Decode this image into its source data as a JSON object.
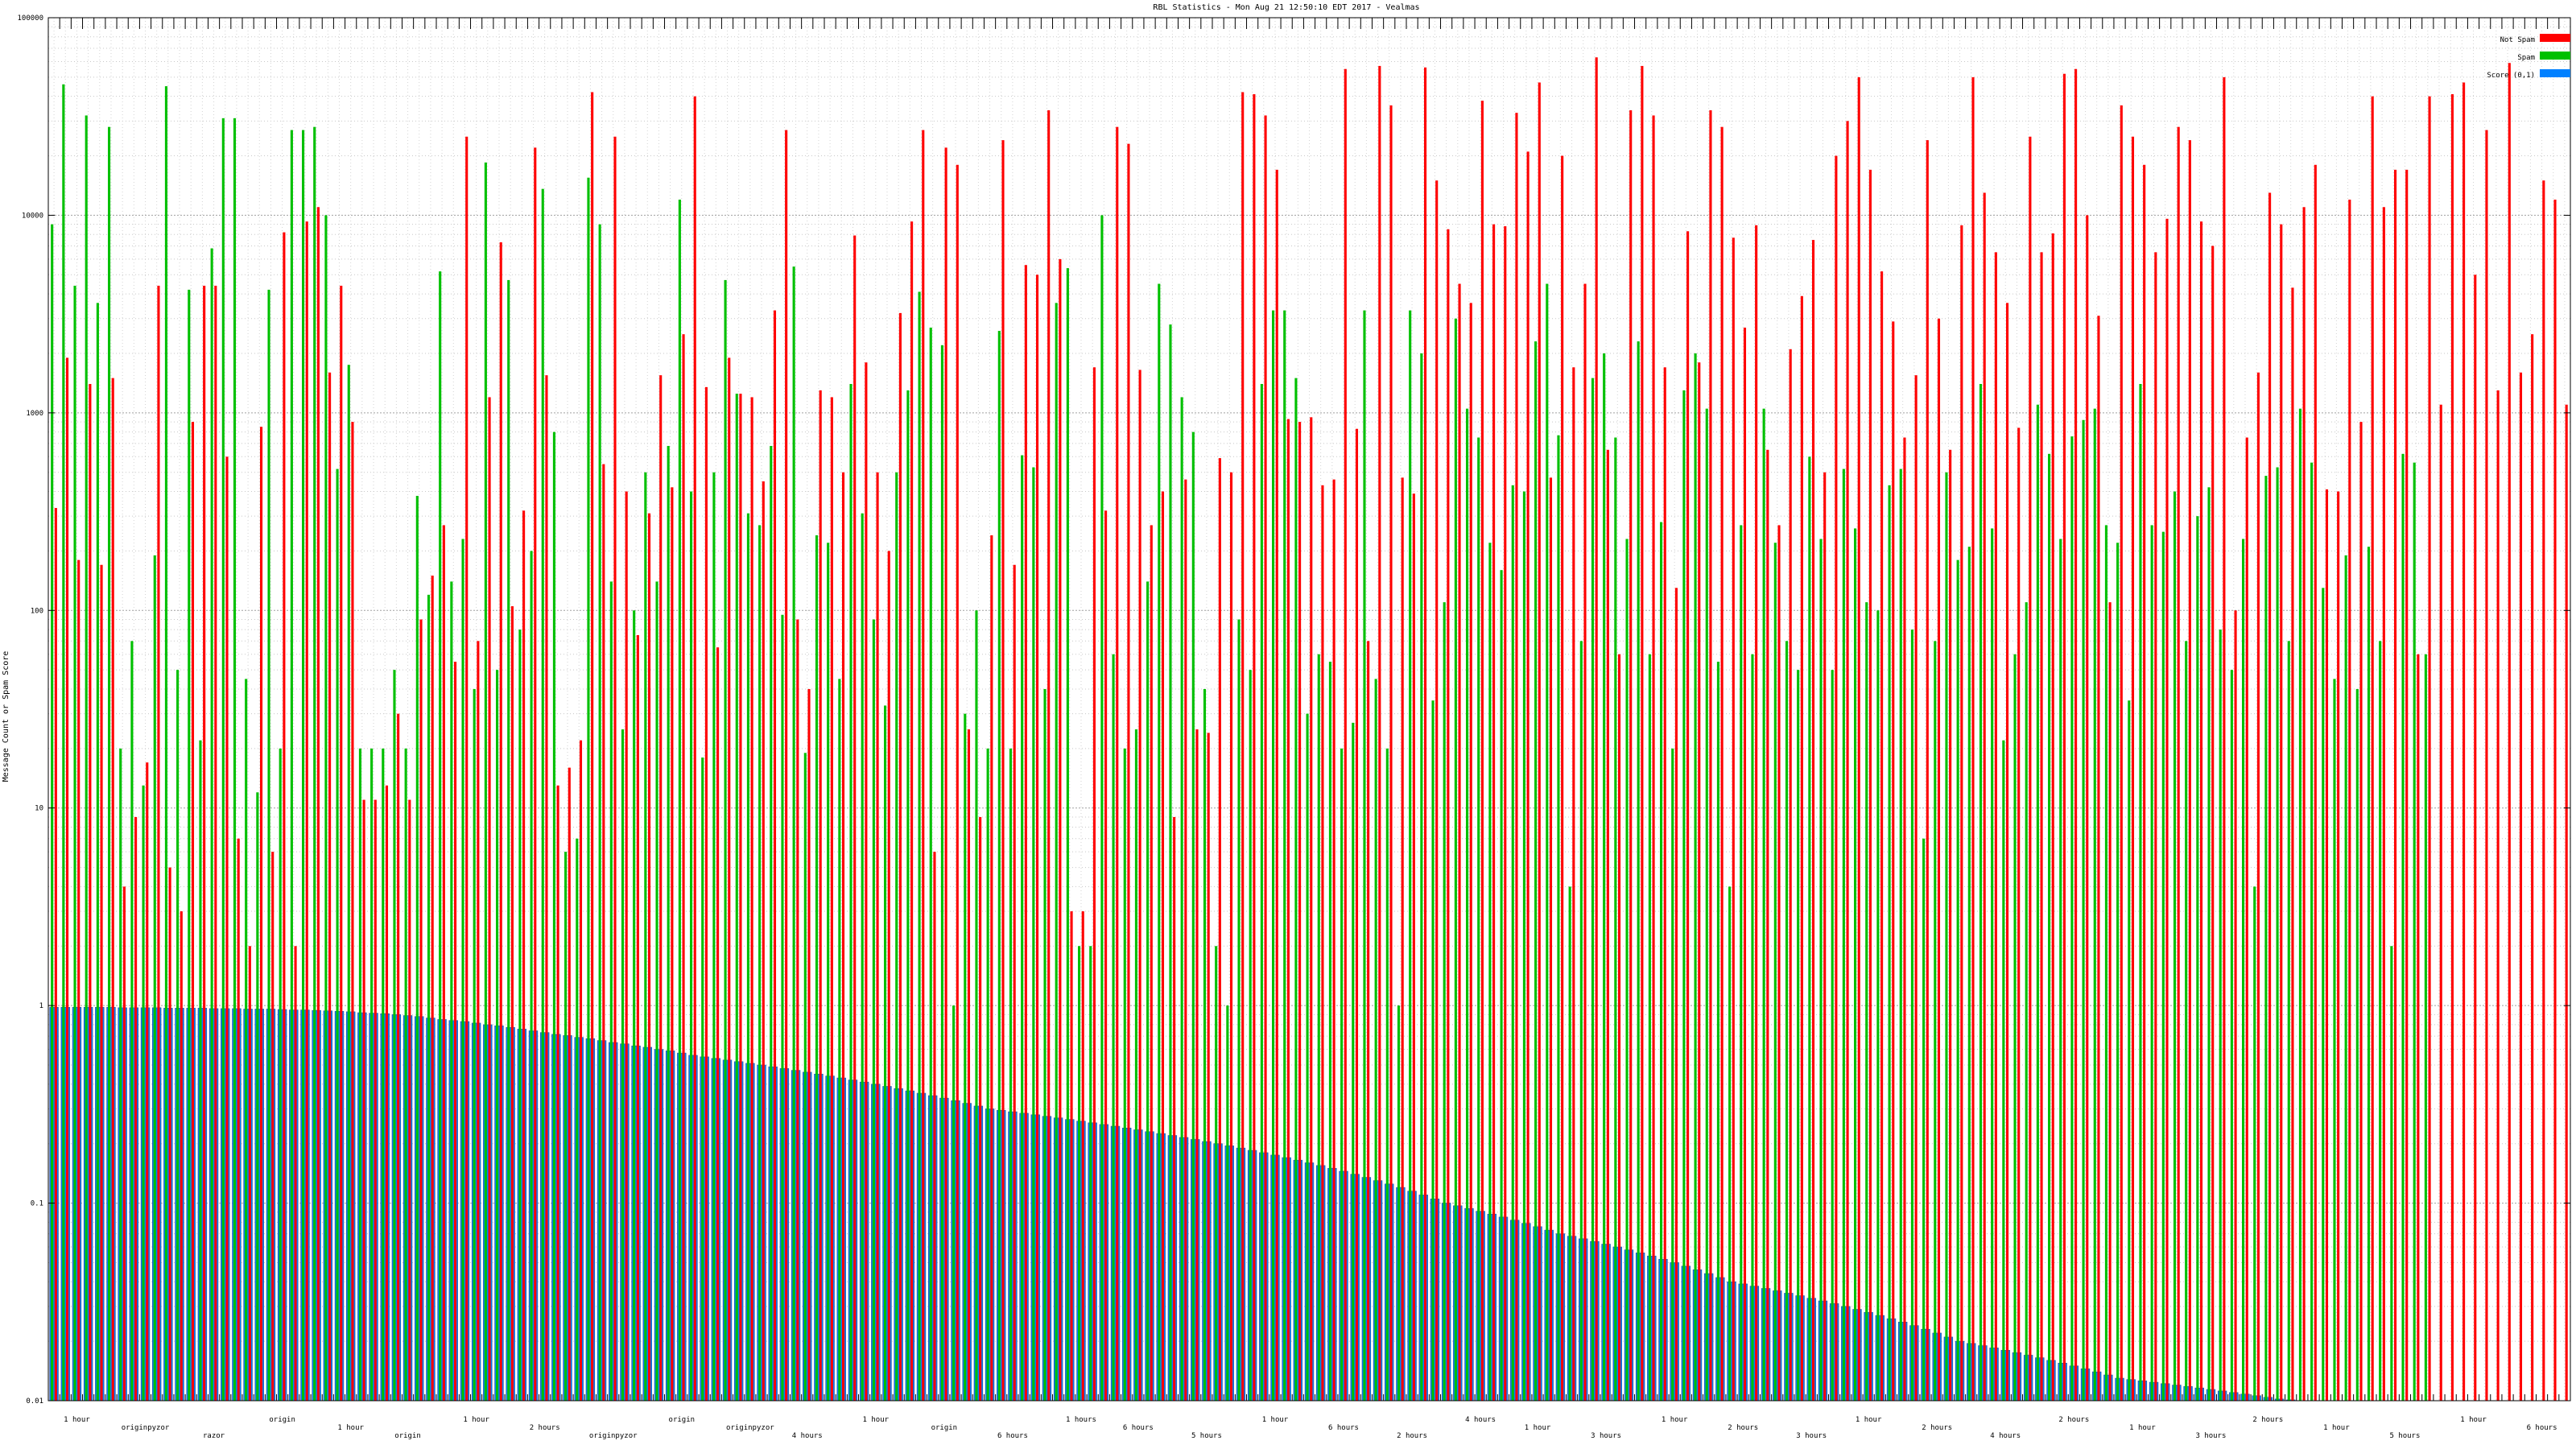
{
  "chart_data": {
    "type": "bar",
    "title": "RBL Statistics - Mon Aug 21 12:50:10 EDT 2017 - Vealmas",
    "ylabel": "Message Count or Spam Score",
    "xlabel": "",
    "yscale": "log",
    "ylim": [
      0.01,
      100000
    ],
    "y_ticks": [
      0.01,
      0.1,
      1,
      10,
      100,
      1000,
      10000,
      100000
    ],
    "y_tick_labels": [
      "0.01",
      "0.1",
      "1",
      "10",
      "100",
      "1000",
      "10000",
      "100000"
    ],
    "grid": true,
    "legend_position": "top-right",
    "categories_note": "Category labels are printed in tiny overlapping text and are not legible",
    "series": [
      {
        "name": "Not Spam",
        "color": "#ff0000",
        "values": [
          330,
          1900,
          180,
          1400,
          170,
          1500,
          4,
          9,
          17,
          4400,
          5,
          3,
          900,
          4400,
          4400,
          600,
          7,
          2,
          850,
          6,
          8200,
          2,
          9300,
          11000,
          1600,
          4400,
          900,
          11,
          11,
          13,
          30,
          11,
          90,
          150,
          270,
          55,
          25000,
          70,
          1200,
          7300,
          105,
          320,
          22000,
          1550,
          13,
          16,
          22,
          42000,
          550,
          25000,
          400,
          75,
          310,
          1550,
          420,
          2500,
          40000,
          1350,
          65,
          1900,
          1250,
          1200,
          450,
          3300,
          27000,
          90,
          40,
          1300,
          1200,
          500,
          7900,
          1800,
          500,
          200,
          3200,
          9300,
          27000,
          6,
          22000,
          18000,
          25,
          9,
          240,
          24000,
          170,
          5600,
          5000,
          34000,
          6000,
          3,
          3,
          1700,
          320,
          28000,
          23000,
          1650,
          270,
          400,
          9,
          460,
          25,
          24,
          590,
          500,
          42000,
          41000,
          32000,
          17000,
          930,
          900,
          950,
          430,
          460,
          55000,
          830,
          70,
          57000,
          36000,
          470,
          390,
          56000,
          15000,
          8500,
          4500,
          3600,
          38000,
          9000,
          8800,
          33000,
          21000,
          47000,
          470,
          20000,
          1700,
          4500,
          63000,
          650,
          60,
          34000,
          57000,
          32000,
          1700,
          130,
          8300,
          1800,
          34000,
          28000,
          7700,
          2700,
          8900,
          650,
          270,
          2100,
          3900,
          7500,
          500,
          20000,
          30000,
          50000,
          17000,
          5200,
          2900,
          750,
          1550,
          24000,
          3000,
          650,
          8900,
          50000,
          13000,
          6500,
          3600,
          840,
          25000,
          6500,
          8100,
          52000,
          55000,
          10000,
          3100,
          110,
          36000,
          25000,
          18000,
          6500,
          9600,
          28000,
          24000,
          9300,
          7000,
          50000,
          100,
          750,
          1600,
          13000,
          9000,
          4300,
          11000,
          18000,
          410,
          400,
          12000,
          900,
          40000,
          11000,
          17000,
          17000,
          60,
          40000,
          1100,
          41000,
          47000,
          5000,
          27000,
          1300,
          59000,
          1600,
          2500,
          15000,
          12000,
          1100
        ]
      },
      {
        "name": "Spam",
        "color": "#00c000",
        "values": [
          9000,
          46000,
          4400,
          32000,
          3600,
          28000,
          20,
          70,
          13,
          190,
          45000,
          50,
          4200,
          22,
          6800,
          31000,
          31000,
          45,
          12,
          4200,
          20,
          27000,
          27000,
          28000,
          10000,
          520,
          1750,
          20,
          20,
          20,
          50,
          20,
          380,
          120,
          5200,
          140,
          230,
          40,
          18500,
          50,
          4700,
          80,
          200,
          13600,
          800,
          6,
          7,
          15500,
          9000,
          140,
          25,
          100,
          500,
          140,
          680,
          12000,
          400,
          18,
          500,
          4700,
          1250,
          310,
          270,
          680,
          95,
          5500,
          19,
          240,
          220,
          45,
          1400,
          310,
          90,
          33,
          500,
          1300,
          4100,
          2700,
          2200,
          1,
          30,
          100,
          20,
          2600,
          20,
          610,
          530,
          40,
          3600,
          5400,
          2,
          2,
          10000,
          60,
          20,
          25,
          140,
          4500,
          2800,
          1200,
          800,
          40,
          2,
          1,
          90,
          50,
          1400,
          3300,
          3300,
          1500,
          30,
          60,
          55,
          20,
          27,
          3300,
          45,
          20,
          1,
          3300,
          2000,
          35,
          110,
          3000,
          1050,
          750,
          220,
          160,
          430,
          400,
          2300,
          4500,
          770,
          4,
          70,
          1500,
          2000,
          750,
          230,
          2300,
          60,
          280,
          20,
          1300,
          2000,
          1050,
          55,
          4,
          270,
          60,
          1050,
          220,
          70,
          50,
          600,
          230,
          50,
          520,
          260,
          110,
          100,
          430,
          520,
          80,
          7,
          70,
          500,
          180,
          210,
          1400,
          260,
          22,
          60,
          110,
          1100,
          620,
          230,
          760,
          920,
          1050,
          270,
          220,
          35,
          1400,
          270,
          250,
          400,
          70,
          300,
          420,
          80,
          50,
          230,
          4,
          480,
          530,
          70,
          1050,
          560,
          130,
          45,
          190,
          40,
          210,
          70,
          2,
          620,
          560,
          60
        ]
      },
      {
        "name": "Score (0,1)",
        "color": "#0080ff",
        "values": [
          0.98,
          0.98,
          0.98,
          0.98,
          0.98,
          0.98,
          0.975,
          0.975,
          0.975,
          0.975,
          0.97,
          0.97,
          0.97,
          0.97,
          0.965,
          0.965,
          0.965,
          0.96,
          0.96,
          0.96,
          0.955,
          0.95,
          0.95,
          0.945,
          0.94,
          0.935,
          0.93,
          0.92,
          0.915,
          0.91,
          0.9,
          0.89,
          0.88,
          0.865,
          0.85,
          0.84,
          0.83,
          0.815,
          0.8,
          0.79,
          0.775,
          0.76,
          0.745,
          0.73,
          0.715,
          0.705,
          0.69,
          0.68,
          0.665,
          0.65,
          0.64,
          0.625,
          0.615,
          0.6,
          0.59,
          0.575,
          0.56,
          0.55,
          0.54,
          0.53,
          0.52,
          0.51,
          0.5,
          0.49,
          0.48,
          0.47,
          0.46,
          0.45,
          0.44,
          0.43,
          0.42,
          0.41,
          0.4,
          0.39,
          0.38,
          0.37,
          0.36,
          0.35,
          0.34,
          0.33,
          0.32,
          0.31,
          0.3,
          0.295,
          0.29,
          0.285,
          0.28,
          0.275,
          0.27,
          0.265,
          0.26,
          0.255,
          0.25,
          0.245,
          0.24,
          0.235,
          0.23,
          0.225,
          0.22,
          0.215,
          0.21,
          0.205,
          0.2,
          0.195,
          0.19,
          0.185,
          0.18,
          0.175,
          0.17,
          0.165,
          0.16,
          0.155,
          0.15,
          0.145,
          0.14,
          0.135,
          0.13,
          0.125,
          0.12,
          0.115,
          0.11,
          0.105,
          0.1,
          0.097,
          0.094,
          0.091,
          0.088,
          0.085,
          0.082,
          0.079,
          0.076,
          0.073,
          0.07,
          0.068,
          0.066,
          0.064,
          0.062,
          0.06,
          0.058,
          0.056,
          0.054,
          0.052,
          0.05,
          0.048,
          0.046,
          0.044,
          0.042,
          0.04,
          0.039,
          0.038,
          0.037,
          0.036,
          0.035,
          0.034,
          0.033,
          0.032,
          0.031,
          0.03,
          0.029,
          0.028,
          0.027,
          0.026,
          0.025,
          0.024,
          0.023,
          0.022,
          0.021,
          0.02,
          0.0195,
          0.019,
          0.0185,
          0.018,
          0.0175,
          0.017,
          0.0165,
          0.016,
          0.0155,
          0.015,
          0.0145,
          0.014,
          0.0135,
          0.013,
          0.0128,
          0.0126,
          0.0124,
          0.0122,
          0.012,
          0.0118,
          0.0116,
          0.0114,
          0.0112,
          0.011,
          0.0108,
          0.0106,
          0.0104,
          0.0102,
          0.0101,
          0.01,
          0.01,
          0.01,
          0.01,
          0.01,
          0.01,
          0.01,
          0.01,
          0.01,
          0.01,
          0.01,
          0.01,
          0.01,
          0.01,
          0.01,
          0.01,
          0.01,
          0.01,
          0.01,
          0.01,
          0.01,
          0.01
        ]
      }
    ],
    "x_axis_bottom_labels": [
      "1 hour",
      "originpyzor",
      "razor",
      "origin",
      "1 hour",
      "origin",
      "1 hour",
      "2 hours",
      "originpyzor",
      "origin",
      "originpyzor",
      "4 hours",
      "1 hour",
      "origin",
      "6 hours",
      "1 hours",
      "6 hours",
      "5 hours",
      "1 hour",
      "6 hours",
      "2 hours",
      "4 hours",
      "1 hour",
      "3 hours",
      "1 hour",
      "2 hours",
      "3 hours",
      "1 hour",
      "2 hours",
      "4 hours",
      "2 hours",
      "1 hour",
      "3 hours",
      "2 hours",
      "1 hour",
      "5 hours",
      "1 hour",
      "6 hours"
    ]
  }
}
